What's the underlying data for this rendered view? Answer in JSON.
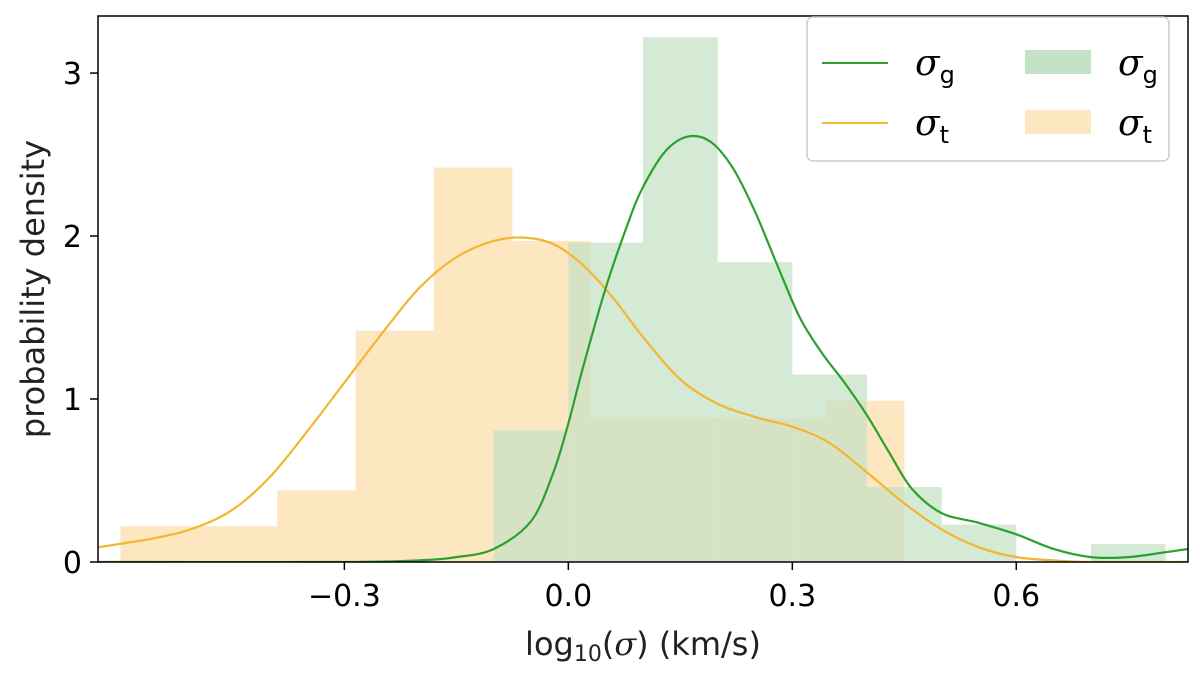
{
  "chart_data": {
    "type": "histogram+kde",
    "xlabel": "log10(σ) (km/s)",
    "ylabel": "probability density",
    "xlim": [
      -0.63,
      0.83
    ],
    "ylim": [
      0,
      3.35
    ],
    "xticks": [
      -0.3,
      0.0,
      0.3,
      0.6
    ],
    "xtick_labels": [
      "−0.3",
      "0.0",
      "0.3",
      "0.6"
    ],
    "yticks": [
      0,
      1,
      2,
      3
    ],
    "ytick_labels": [
      "0",
      "1",
      "2",
      "3"
    ],
    "grid": false,
    "legend_placement": "top-right",
    "legend": {
      "line_g": "σg",
      "line_t": "σt",
      "hist_g": "σg",
      "hist_t": "σt"
    },
    "colors": {
      "green_line": "#2ca02c",
      "orange_line": "#f2b630",
      "green_fill": "#c5e2c5",
      "orange_fill": "#fde7c0"
    },
    "histograms": [
      {
        "name": "σt",
        "color": "#fde7c0",
        "bins": [
          {
            "x0": -0.6,
            "x1": -0.39,
            "y": 0.22
          },
          {
            "x0": -0.39,
            "x1": -0.285,
            "y": 0.44
          },
          {
            "x0": -0.285,
            "x1": -0.18,
            "y": 1.42
          },
          {
            "x0": -0.18,
            "x1": -0.075,
            "y": 2.42
          },
          {
            "x0": -0.075,
            "x1": 0.03,
            "y": 1.97
          },
          {
            "x0": 0.03,
            "x1": 0.135,
            "y": 0.88
          },
          {
            "x0": 0.135,
            "x1": 0.24,
            "y": 0.88
          },
          {
            "x0": 0.24,
            "x1": 0.345,
            "y": 0.88
          },
          {
            "x0": 0.345,
            "x1": 0.45,
            "y": 0.99
          }
        ]
      },
      {
        "name": "σg",
        "color": "#c5e2c5",
        "bins": [
          {
            "x0": -0.1,
            "x1": 0.0,
            "y": 0.81
          },
          {
            "x0": 0.0,
            "x1": 0.1,
            "y": 1.96
          },
          {
            "x0": 0.1,
            "x1": 0.2,
            "y": 3.22
          },
          {
            "x0": 0.2,
            "x1": 0.3,
            "y": 1.84
          },
          {
            "x0": 0.3,
            "x1": 0.4,
            "y": 1.15
          },
          {
            "x0": 0.4,
            "x1": 0.5,
            "y": 0.46
          },
          {
            "x0": 0.5,
            "x1": 0.6,
            "y": 0.23
          },
          {
            "x0": 0.6,
            "x1": 0.7,
            "y": 0.0
          },
          {
            "x0": 0.7,
            "x1": 0.8,
            "y": 0.11
          }
        ]
      }
    ],
    "series": [
      {
        "name": "σt",
        "color": "#f2b630",
        "points": [
          [
            -0.63,
            0.09
          ],
          [
            -0.55,
            0.15
          ],
          [
            -0.5,
            0.21
          ],
          [
            -0.45,
            0.32
          ],
          [
            -0.4,
            0.52
          ],
          [
            -0.35,
            0.8
          ],
          [
            -0.3,
            1.1
          ],
          [
            -0.25,
            1.4
          ],
          [
            -0.2,
            1.68
          ],
          [
            -0.15,
            1.87
          ],
          [
            -0.1,
            1.97
          ],
          [
            -0.06,
            1.99
          ],
          [
            -0.02,
            1.95
          ],
          [
            0.02,
            1.82
          ],
          [
            0.06,
            1.62
          ],
          [
            0.1,
            1.38
          ],
          [
            0.15,
            1.12
          ],
          [
            0.2,
            0.97
          ],
          [
            0.25,
            0.89
          ],
          [
            0.3,
            0.83
          ],
          [
            0.35,
            0.73
          ],
          [
            0.4,
            0.55
          ],
          [
            0.45,
            0.36
          ],
          [
            0.5,
            0.2
          ],
          [
            0.55,
            0.09
          ],
          [
            0.6,
            0.03
          ],
          [
            0.65,
            0.01
          ],
          [
            0.7,
            0.0
          ],
          [
            0.83,
            0.0
          ]
        ]
      },
      {
        "name": "σg",
        "color": "#2ca02c",
        "points": [
          [
            -0.63,
            0.0
          ],
          [
            -0.3,
            0.0
          ],
          [
            -0.2,
            0.01
          ],
          [
            -0.15,
            0.03
          ],
          [
            -0.1,
            0.08
          ],
          [
            -0.05,
            0.25
          ],
          [
            -0.02,
            0.55
          ],
          [
            0.0,
            0.85
          ],
          [
            0.02,
            1.2
          ],
          [
            0.05,
            1.68
          ],
          [
            0.08,
            2.08
          ],
          [
            0.1,
            2.3
          ],
          [
            0.13,
            2.52
          ],
          [
            0.16,
            2.61
          ],
          [
            0.19,
            2.58
          ],
          [
            0.22,
            2.42
          ],
          [
            0.25,
            2.15
          ],
          [
            0.28,
            1.82
          ],
          [
            0.31,
            1.5
          ],
          [
            0.34,
            1.28
          ],
          [
            0.37,
            1.1
          ],
          [
            0.4,
            0.9
          ],
          [
            0.43,
            0.67
          ],
          [
            0.46,
            0.45
          ],
          [
            0.5,
            0.3
          ],
          [
            0.55,
            0.24
          ],
          [
            0.6,
            0.17
          ],
          [
            0.65,
            0.08
          ],
          [
            0.7,
            0.03
          ],
          [
            0.75,
            0.03
          ],
          [
            0.8,
            0.06
          ],
          [
            0.83,
            0.08
          ]
        ]
      }
    ]
  }
}
